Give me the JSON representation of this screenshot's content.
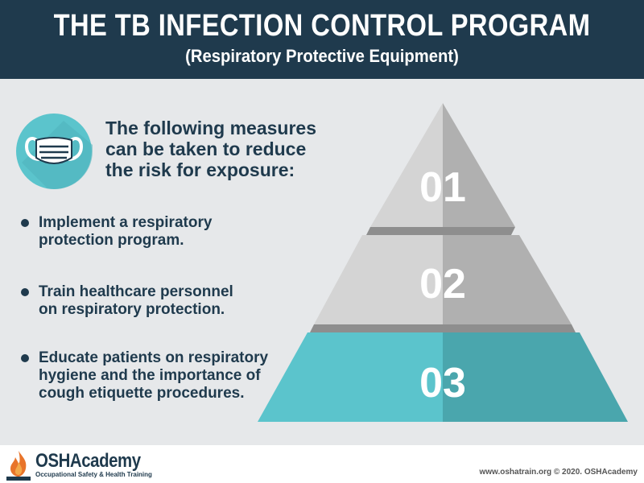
{
  "header": {
    "title": "THE TB INFECTION CONTROL PROGRAM",
    "subtitle": "(Respiratory Protective Equipment)"
  },
  "intro": {
    "lines": [
      "The following measures",
      "can be taken to reduce",
      "the risk for exposure:"
    ]
  },
  "bullets": [
    {
      "lines": [
        "Implement a respiratory",
        "protection program."
      ]
    },
    {
      "lines": [
        "Train healthcare personnel",
        "on respiratory protection."
      ]
    },
    {
      "lines": [
        "Educate patients on respiratory",
        "hygiene and the importance of",
        "cough etiquette procedures."
      ]
    }
  ],
  "pyramid": {
    "levels": [
      {
        "label": "01",
        "left_color": "#d4d4d4",
        "right_color": "#b0b0b0"
      },
      {
        "label": "02",
        "left_color": "#d4d4d4",
        "right_color": "#b0b0b0"
      },
      {
        "label": "03",
        "left_color": "#5bc4cc",
        "right_color": "#4aa6ad"
      }
    ]
  },
  "icons": {
    "mask": "face-mask-icon"
  },
  "footer": {
    "logo_name": "OSHAcademy",
    "logo_tagline": "Occupational Safety & Health Training",
    "credit": "www.oshatrain.org © 2020. OSHAcademy"
  },
  "colors": {
    "header_bg": "#1f3a4d",
    "text_dark": "#1f3a4d",
    "accent_teal": "#5bc4cc",
    "background": "#e6e8ea"
  }
}
